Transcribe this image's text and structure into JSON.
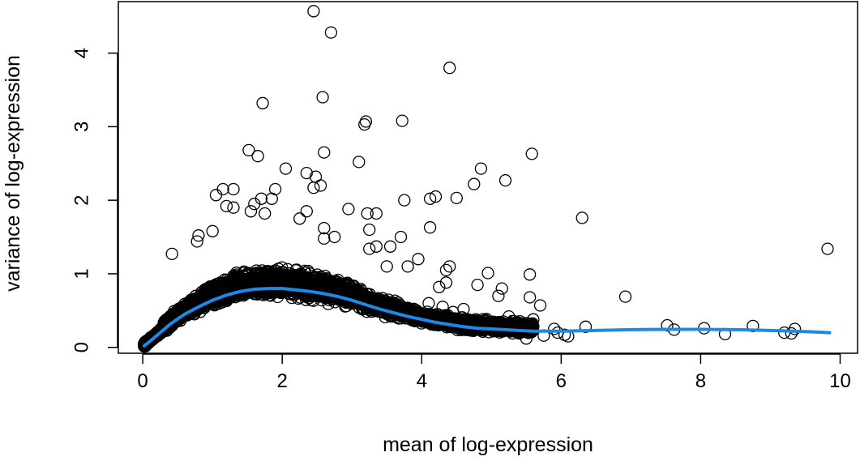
{
  "chart_data": {
    "type": "scatter",
    "title": "",
    "xlabel": "mean of log-expression",
    "ylabel": "variance of log-expression",
    "xlim": [
      -0.35,
      10.25
    ],
    "ylim": [
      -0.08,
      4.7
    ],
    "x_ticks": [
      0,
      2,
      4,
      6,
      8,
      10
    ],
    "y_ticks": [
      0,
      1,
      2,
      3,
      4
    ],
    "x_tick_labels": [
      "0",
      "2",
      "4",
      "6",
      "8",
      "10"
    ],
    "y_tick_labels": [
      "0",
      "1",
      "2",
      "3",
      "4"
    ],
    "grid": false,
    "legend": "none",
    "colors": {
      "points": "#000000",
      "trend": "#1e88e5"
    },
    "series": [
      {
        "kind": "points",
        "points": [
          [
            2.45,
            4.57
          ],
          [
            2.7,
            4.28
          ],
          [
            4.4,
            3.8
          ],
          [
            1.72,
            3.32
          ],
          [
            2.58,
            3.4
          ],
          [
            3.2,
            3.07
          ],
          [
            3.18,
            3.03
          ],
          [
            3.72,
            3.08
          ],
          [
            1.52,
            2.68
          ],
          [
            1.65,
            2.6
          ],
          [
            2.6,
            2.65
          ],
          [
            3.1,
            2.52
          ],
          [
            5.58,
            2.63
          ],
          [
            2.05,
            2.43
          ],
          [
            2.35,
            2.37
          ],
          [
            2.48,
            2.32
          ],
          [
            2.55,
            2.2
          ],
          [
            2.45,
            2.17
          ],
          [
            4.85,
            2.43
          ],
          [
            4.75,
            2.22
          ],
          [
            5.2,
            2.27
          ],
          [
            1.15,
            2.15
          ],
          [
            1.3,
            2.15
          ],
          [
            1.05,
            2.07
          ],
          [
            1.9,
            2.15
          ],
          [
            1.85,
            2.02
          ],
          [
            1.7,
            2.02
          ],
          [
            4.2,
            2.05
          ],
          [
            4.12,
            2.02
          ],
          [
            4.5,
            2.03
          ],
          [
            3.75,
            2.0
          ],
          [
            2.95,
            1.88
          ],
          [
            3.22,
            1.82
          ],
          [
            3.35,
            1.82
          ],
          [
            1.2,
            1.92
          ],
          [
            1.3,
            1.9
          ],
          [
            1.6,
            1.95
          ],
          [
            1.55,
            1.85
          ],
          [
            1.75,
            1.82
          ],
          [
            2.35,
            1.85
          ],
          [
            2.25,
            1.75
          ],
          [
            2.6,
            1.62
          ],
          [
            2.6,
            1.48
          ],
          [
            4.12,
            1.63
          ],
          [
            3.25,
            1.6
          ],
          [
            6.3,
            1.76
          ],
          [
            3.7,
            1.5
          ],
          [
            1.0,
            1.58
          ],
          [
            0.8,
            1.52
          ],
          [
            0.42,
            1.27
          ],
          [
            0.78,
            1.44
          ],
          [
            2.75,
            1.5
          ],
          [
            3.55,
            1.37
          ],
          [
            3.35,
            1.37
          ],
          [
            3.25,
            1.34
          ],
          [
            3.95,
            1.2
          ],
          [
            3.8,
            1.1
          ],
          [
            3.5,
            1.1
          ],
          [
            4.4,
            1.1
          ],
          [
            4.35,
            1.05
          ],
          [
            9.82,
            1.34
          ],
          [
            5.55,
            0.99
          ],
          [
            4.95,
            1.01
          ],
          [
            5.15,
            0.8
          ],
          [
            4.8,
            0.85
          ],
          [
            4.35,
            0.88
          ],
          [
            4.25,
            0.82
          ],
          [
            5.1,
            0.7
          ],
          [
            5.55,
            0.68
          ],
          [
            5.7,
            0.57
          ],
          [
            6.92,
            0.69
          ],
          [
            5.25,
            0.42
          ],
          [
            5.6,
            0.38
          ],
          [
            5.6,
            0.28
          ],
          [
            5.9,
            0.25
          ],
          [
            6.35,
            0.28
          ],
          [
            6.1,
            0.15
          ],
          [
            5.95,
            0.2
          ],
          [
            7.52,
            0.3
          ],
          [
            7.62,
            0.24
          ],
          [
            8.05,
            0.26
          ],
          [
            8.35,
            0.18
          ],
          [
            8.75,
            0.29
          ],
          [
            9.2,
            0.2
          ],
          [
            9.35,
            0.25
          ],
          [
            9.3,
            0.19
          ],
          [
            5.45,
            0.22
          ],
          [
            5.3,
            0.19
          ],
          [
            5.0,
            0.25
          ],
          [
            6.05,
            0.17
          ],
          [
            5.75,
            0.16
          ],
          [
            5.5,
            0.12
          ],
          [
            4.9,
            0.24
          ],
          [
            4.7,
            0.3
          ],
          [
            4.55,
            0.34
          ],
          [
            4.6,
            0.52
          ],
          [
            4.45,
            0.48
          ],
          [
            4.3,
            0.55
          ],
          [
            4.1,
            0.6
          ]
        ]
      },
      {
        "kind": "trend",
        "points": [
          [
            0.02,
            0.02
          ],
          [
            0.1,
            0.08
          ],
          [
            0.25,
            0.2
          ],
          [
            0.4,
            0.32
          ],
          [
            0.6,
            0.45
          ],
          [
            0.8,
            0.55
          ],
          [
            1.0,
            0.64
          ],
          [
            1.2,
            0.71
          ],
          [
            1.4,
            0.76
          ],
          [
            1.6,
            0.79
          ],
          [
            1.8,
            0.8
          ],
          [
            2.0,
            0.8
          ],
          [
            2.2,
            0.78
          ],
          [
            2.4,
            0.76
          ],
          [
            2.6,
            0.73
          ],
          [
            2.8,
            0.69
          ],
          [
            3.0,
            0.64
          ],
          [
            3.2,
            0.58
          ],
          [
            3.4,
            0.52
          ],
          [
            3.6,
            0.47
          ],
          [
            3.8,
            0.42
          ],
          [
            4.0,
            0.38
          ],
          [
            4.2,
            0.34
          ],
          [
            4.4,
            0.31
          ],
          [
            4.6,
            0.28
          ],
          [
            4.8,
            0.26
          ],
          [
            5.0,
            0.25
          ],
          [
            5.2,
            0.24
          ],
          [
            5.4,
            0.23
          ],
          [
            5.6,
            0.22
          ],
          [
            6.0,
            0.22
          ],
          [
            6.5,
            0.23
          ],
          [
            7.0,
            0.24
          ],
          [
            7.5,
            0.245
          ],
          [
            8.0,
            0.245
          ],
          [
            8.5,
            0.24
          ],
          [
            9.0,
            0.23
          ],
          [
            9.5,
            0.215
          ],
          [
            9.85,
            0.2
          ]
        ]
      }
    ],
    "dense_band": {
      "count": 3800,
      "x_range": [
        0.02,
        5.6
      ],
      "lower_offset": -0.16,
      "upper_offset": 0.32
    }
  }
}
